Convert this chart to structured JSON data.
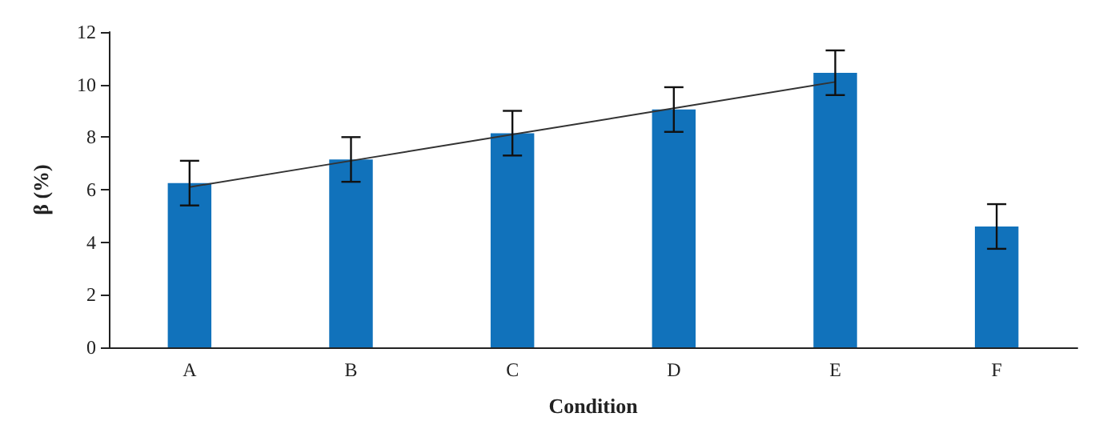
{
  "chart_data": {
    "type": "bar",
    "xlabel": "Condition",
    "ylabel": "β (%)",
    "categories": [
      "A",
      "B",
      "C",
      "D",
      "E",
      "F"
    ],
    "series": [
      {
        "color": "#1172bb",
        "values": [
          6.25,
          7.15,
          8.15,
          9.05,
          10.45,
          4.6
        ],
        "errors": [
          0.85,
          0.85,
          0.85,
          0.85,
          0.85,
          0.85
        ]
      },
      {
        "type": "line",
        "color": "#333333",
        "x": [
          "A",
          "B",
          "C",
          "D",
          "E"
        ],
        "values": [
          6.1,
          7.1,
          8.1,
          9.1,
          10.1
        ],
        "marker": "none",
        "line_style": "solid"
      }
    ],
    "ylim": [
      0,
      12
    ],
    "yticks": [
      0,
      2,
      4,
      6,
      8,
      10,
      12
    ],
    "grid": false
  }
}
